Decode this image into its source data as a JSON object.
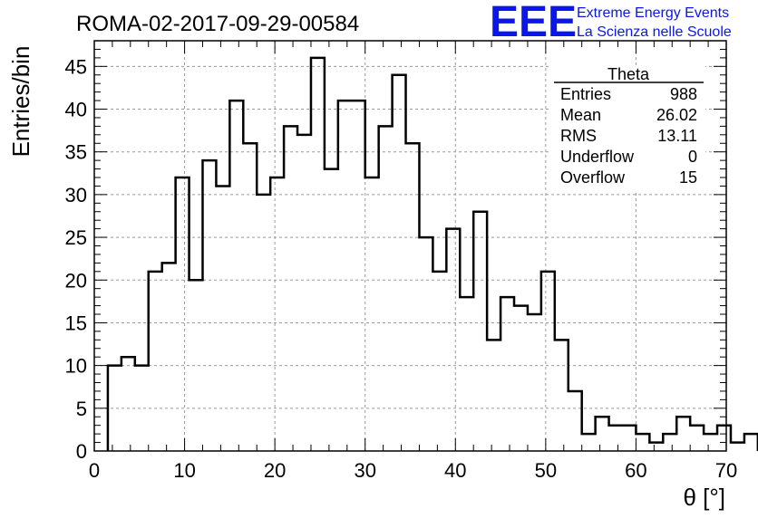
{
  "title": "ROMA-02-2017-09-29-00584",
  "brand": {
    "logo": "EEE",
    "line1": "Extreme Energy Events",
    "line2": "La Scienza nelle Scuole",
    "color": "#0a17e8"
  },
  "stats": {
    "name": "Theta",
    "rows": [
      {
        "label": "Entries",
        "value": "988"
      },
      {
        "label": "Mean",
        "value": "26.02"
      },
      {
        "label": "RMS",
        "value": "13.11"
      },
      {
        "label": "Underflow",
        "value": "0"
      },
      {
        "label": "Overflow",
        "value": "15"
      }
    ]
  },
  "chart_data": {
    "type": "bar",
    "style": "step-histogram",
    "xlabel": "θ [°]",
    "ylabel": "Entries/bin",
    "xlim": [
      0,
      70
    ],
    "ylim": [
      0,
      48
    ],
    "grid": true,
    "bin_width": 1.5,
    "x_start": 1.5,
    "values": [
      10,
      11,
      10,
      21,
      22,
      32,
      20,
      34,
      31,
      41,
      36,
      30,
      32,
      38,
      37,
      46,
      33,
      41,
      41,
      32,
      38,
      44,
      36,
      25,
      21,
      26,
      18,
      28,
      13,
      18,
      17,
      16,
      21,
      13,
      7,
      2,
      4,
      3,
      3,
      2,
      1,
      2,
      4,
      3,
      2,
      3,
      1,
      2
    ],
    "x_ticks": [
      "0",
      "10",
      "20",
      "30",
      "40",
      "50",
      "60",
      "70"
    ],
    "y_ticks": [
      "0",
      "5",
      "10",
      "15",
      "20",
      "25",
      "30",
      "35",
      "40",
      "45"
    ],
    "line_color": "#000000",
    "grid_color": "#9a9a9a"
  }
}
